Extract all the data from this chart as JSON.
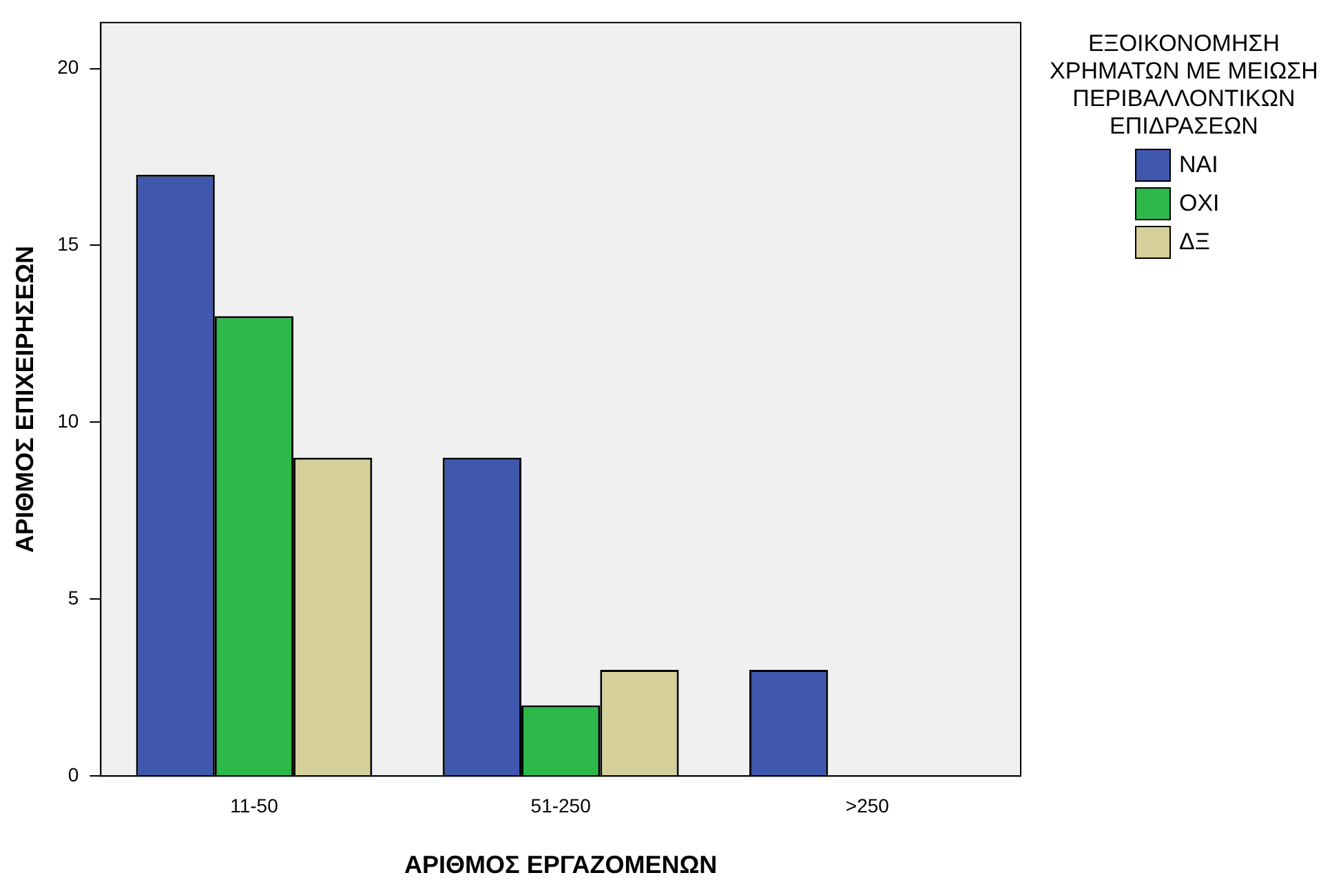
{
  "chart_data": {
    "type": "bar",
    "xlabel": "ΑΡΙΘΜΟΣ ΕΡΓΑΖΟΜΕΝΩΝ",
    "ylabel": "ΑΡΙΘΜΟΣ ΕΠΙΧΕΙΡΗΣΕΩΝ",
    "legend_title": "ΕΞΟΙΚΟΝΟΜΗΣΗ ΧΡΗΜΑΤΩΝ ΜΕ ΜΕΙΩΣΗ ΠΕΡΙΒΑΛΛΟΝΤΙΚΩΝ ΕΠΙΔΡΑΣΕΩΝ",
    "categories": [
      "11-50",
      "51-250",
      ">250"
    ],
    "series": [
      {
        "name": "ΝΑΙ",
        "color": "#3f58ae",
        "values": [
          17,
          9,
          3
        ]
      },
      {
        "name": "ΟΧΙ",
        "color": "#2db84a",
        "values": [
          13,
          2,
          null
        ]
      },
      {
        "name": "ΔΞ",
        "color": "#d5cf9a",
        "values": [
          9,
          3,
          null
        ]
      }
    ],
    "ylim": [
      0,
      21.3
    ],
    "yticks": [
      0,
      5,
      10,
      15,
      20
    ],
    "grid": false,
    "legend": "right"
  }
}
